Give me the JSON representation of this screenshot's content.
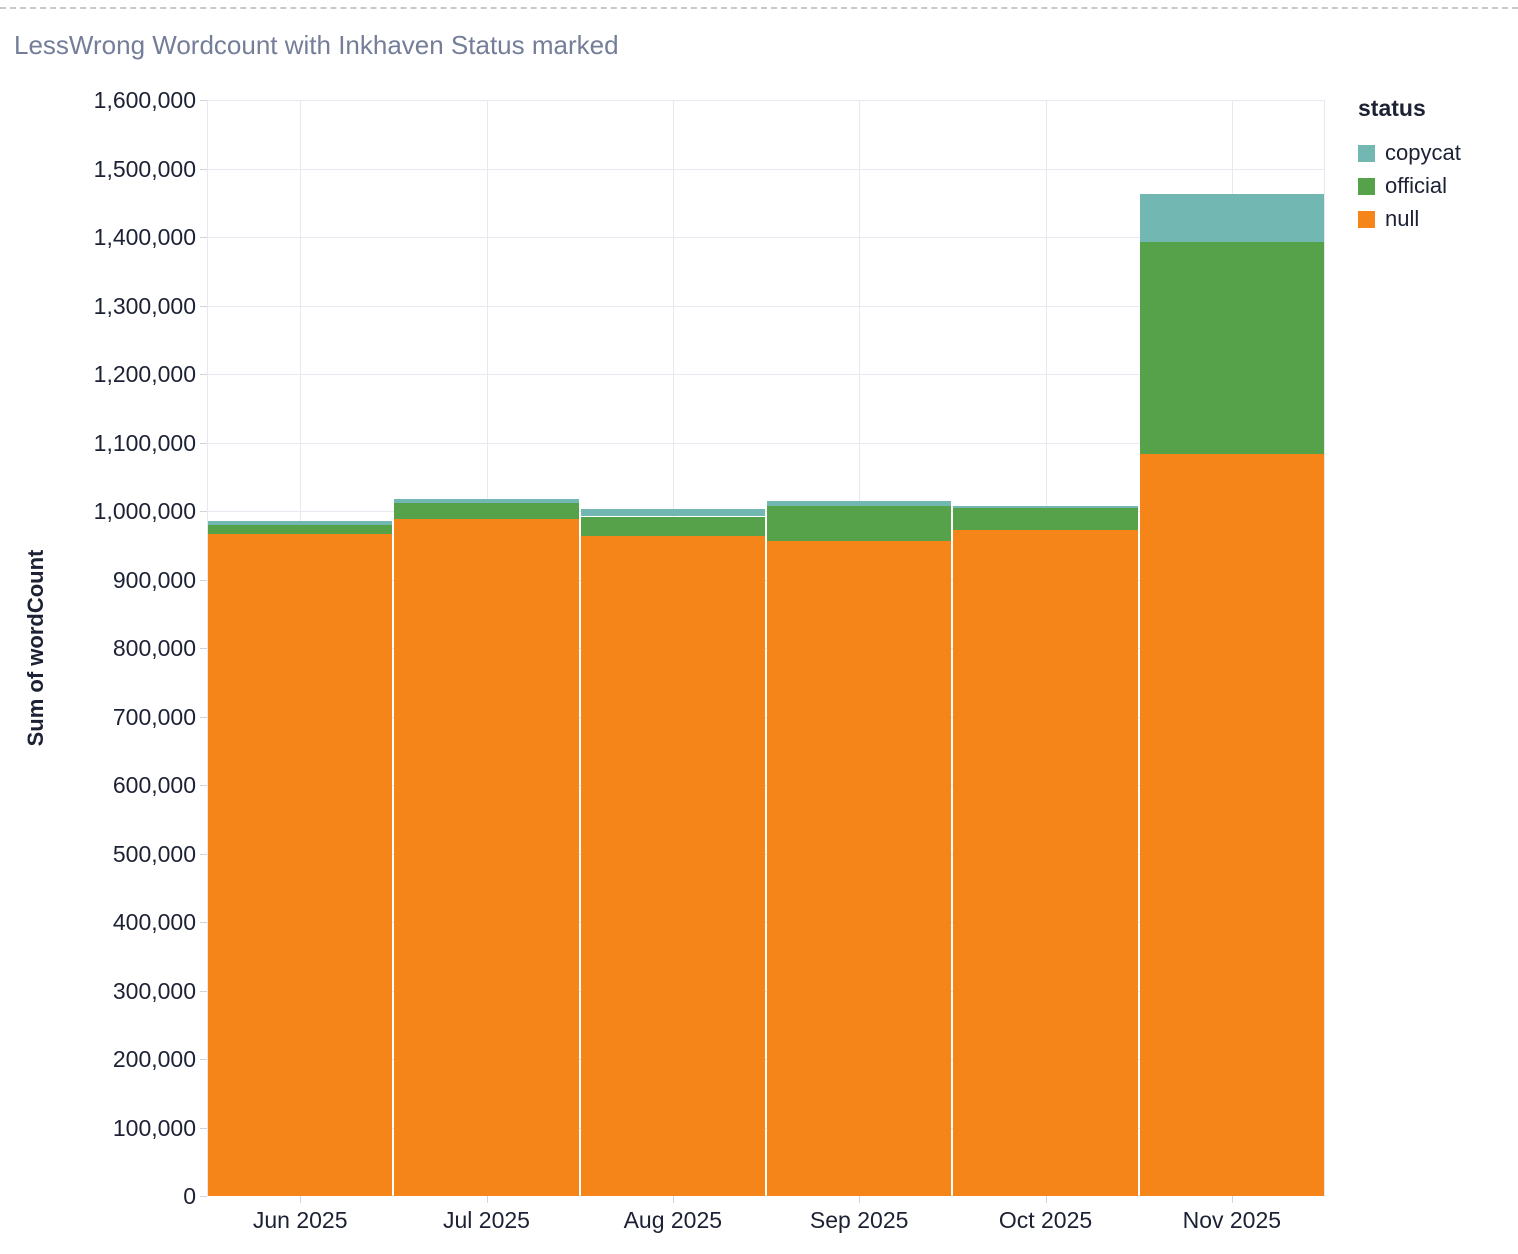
{
  "title": "LessWrong Wordcount with Inkhaven Status marked",
  "chart_data": {
    "type": "bar",
    "stacked": true,
    "title": "LessWrong Wordcount with Inkhaven Status marked",
    "xlabel": "",
    "ylabel": "Sum of wordCount",
    "legend_title": "status",
    "legend_position": "top-right",
    "grid": true,
    "ylim": [
      0,
      1600000
    ],
    "ytick_step": 100000,
    "categories": [
      "Jun 2025",
      "Jul 2025",
      "Aug 2025",
      "Sep 2025",
      "Oct 2025",
      "Nov 2025"
    ],
    "series": [
      {
        "name": "copycat",
        "color": "#72b7b2",
        "values": [
          6000,
          5000,
          11000,
          7000,
          2500,
          70000
        ]
      },
      {
        "name": "official",
        "color": "#55a24b",
        "values": [
          13000,
          24000,
          28000,
          51000,
          33000,
          310000
        ]
      },
      {
        "name": "null",
        "color": "#f58518",
        "values": [
          966000,
          988000,
          964000,
          956000,
          972000,
          1083000
        ]
      }
    ],
    "stack_order_bottom_to_top": [
      "null",
      "official",
      "copycat"
    ],
    "totals": [
      985000,
      1017000,
      1003000,
      1014000,
      1007500,
      1463000
    ]
  },
  "styles": {
    "grid_color": "#e8e8f0",
    "tick_color": "#d2d2de",
    "label_color": "#1c2134",
    "title_color": "#757e99"
  }
}
